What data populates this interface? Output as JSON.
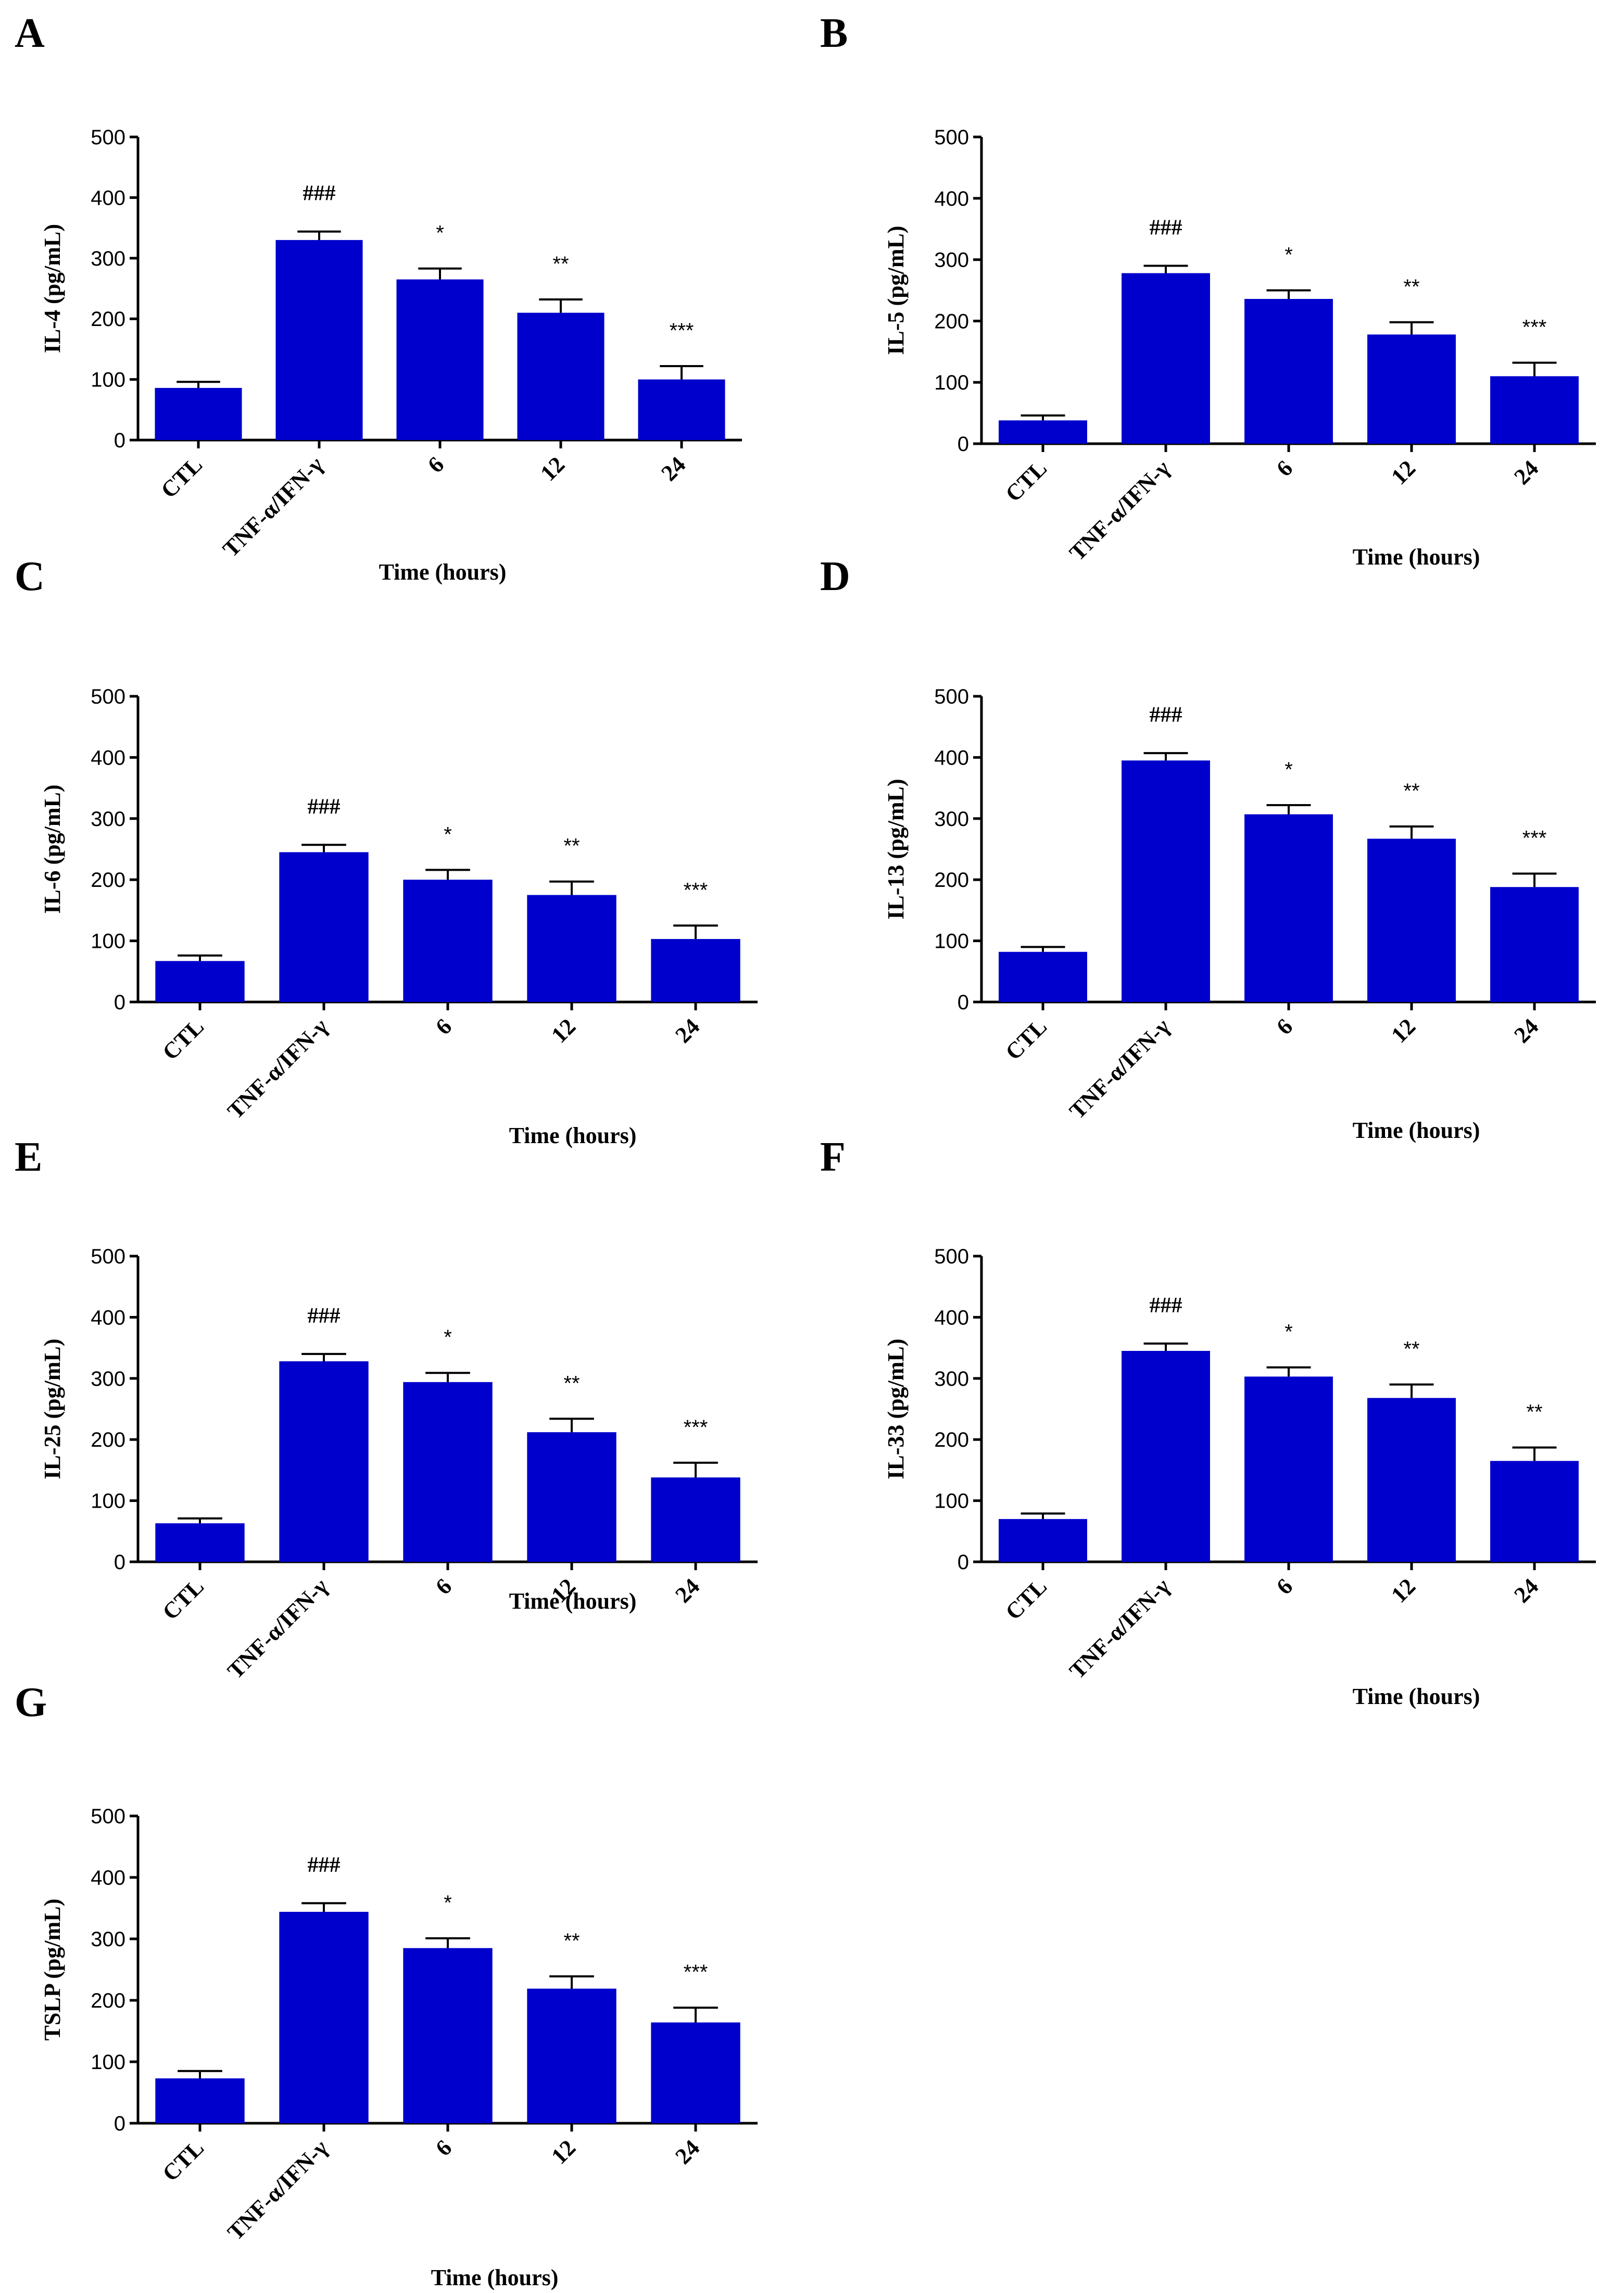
{
  "chart_data": [
    {
      "panel": "A",
      "type": "bar",
      "categories": [
        "CTL",
        "TNF-α/IFN-γ",
        "6",
        "12",
        "24"
      ],
      "values": [
        86,
        330,
        265,
        210,
        100
      ],
      "errors": [
        10,
        14,
        18,
        22,
        22
      ],
      "significance": [
        "",
        "###",
        "*",
        "**",
        "***"
      ],
      "xlabel": "Time (hours)",
      "ylabel": "IL-4 (pg/mL)",
      "ylim": [
        0,
        500
      ],
      "yticks": [
        "0",
        "100",
        "200",
        "300",
        "400",
        "500"
      ],
      "bar_color": "#0000cc"
    },
    {
      "panel": "B",
      "type": "bar",
      "categories": [
        "CTL",
        "TNF-α/IFN-γ",
        "6",
        "12",
        "24"
      ],
      "values": [
        38,
        278,
        236,
        178,
        110
      ],
      "errors": [
        8,
        12,
        14,
        20,
        22
      ],
      "significance": [
        "",
        "###",
        "*",
        "**",
        "***"
      ],
      "xlabel": "Time (hours)",
      "ylabel": "IL-5 (pg/mL)",
      "ylim": [
        0,
        500
      ],
      "yticks": [
        "0",
        "100",
        "200",
        "300",
        "400",
        "500"
      ],
      "bar_color": "#0000cc"
    },
    {
      "panel": "C",
      "type": "bar",
      "categories": [
        "CTL",
        "TNF-α/IFN-γ",
        "6",
        "12",
        "24"
      ],
      "values": [
        67,
        245,
        200,
        175,
        103
      ],
      "errors": [
        9,
        12,
        16,
        22,
        22
      ],
      "significance": [
        "",
        "###",
        "*",
        "**",
        "***"
      ],
      "xlabel": "Time (hours)",
      "ylabel": "IL-6 (pg/mL)",
      "ylim": [
        0,
        500
      ],
      "yticks": [
        "0",
        "100",
        "200",
        "300",
        "400",
        "500"
      ],
      "bar_color": "#0000cc"
    },
    {
      "panel": "D",
      "type": "bar",
      "categories": [
        "CTL",
        "TNF-α/IFN-γ",
        "6",
        "12",
        "24"
      ],
      "values": [
        82,
        395,
        307,
        267,
        188
      ],
      "errors": [
        8,
        12,
        15,
        20,
        22
      ],
      "significance": [
        "",
        "###",
        "*",
        "**",
        "***"
      ],
      "xlabel": "Time (hours)",
      "ylabel": "IL-13 (pg/mL)",
      "ylim": [
        0,
        500
      ],
      "yticks": [
        "0",
        "100",
        "200",
        "300",
        "400",
        "500"
      ],
      "bar_color": "#0000cc"
    },
    {
      "panel": "E",
      "type": "bar",
      "categories": [
        "CTL",
        "TNF-α/IFN-γ",
        "6",
        "12",
        "24"
      ],
      "values": [
        63,
        328,
        294,
        212,
        138
      ],
      "errors": [
        8,
        12,
        15,
        22,
        24
      ],
      "significance": [
        "",
        "###",
        "*",
        "**",
        "***"
      ],
      "xlabel": "Time (hours)",
      "ylabel": "IL-25 (pg/mL)",
      "ylim": [
        0,
        500
      ],
      "yticks": [
        "0",
        "100",
        "200",
        "300",
        "400",
        "500"
      ],
      "bar_color": "#0000cc"
    },
    {
      "panel": "F",
      "type": "bar",
      "categories": [
        "CTL",
        "TNF-α/IFN-γ",
        "6",
        "12",
        "24"
      ],
      "values": [
        70,
        345,
        303,
        268,
        165
      ],
      "errors": [
        9,
        12,
        15,
        22,
        22
      ],
      "significance": [
        "",
        "###",
        "*",
        "**",
        "**"
      ],
      "xlabel": "Time (hours)",
      "ylabel": "IL-33 (pg/mL)",
      "ylim": [
        0,
        500
      ],
      "yticks": [
        "0",
        "100",
        "200",
        "300",
        "400",
        "500"
      ],
      "bar_color": "#0000cc"
    },
    {
      "panel": "G",
      "type": "bar",
      "categories": [
        "CTL",
        "TNF-α/IFN-γ",
        "6",
        "12",
        "24"
      ],
      "values": [
        73,
        344,
        285,
        219,
        164
      ],
      "errors": [
        12,
        14,
        16,
        20,
        24
      ],
      "significance": [
        "",
        "###",
        "*",
        "**",
        "***"
      ],
      "xlabel": "Time (hours)",
      "ylabel": "TSLP (pg/mL)",
      "ylim": [
        0,
        500
      ],
      "yticks": [
        "0",
        "100",
        "200",
        "300",
        "400",
        "500"
      ],
      "bar_color": "#0000cc"
    }
  ]
}
